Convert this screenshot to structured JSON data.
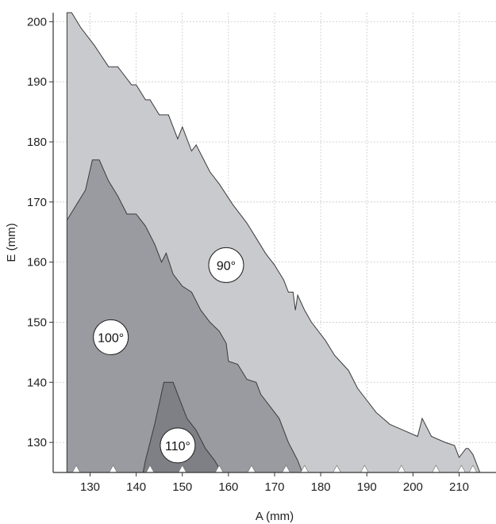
{
  "chart_data": {
    "type": "area",
    "xlabel": "A (mm)",
    "ylabel": "E (mm)",
    "xlim": [
      122,
      218
    ],
    "ylim": [
      125,
      201.5
    ],
    "xticks": [
      130,
      140,
      150,
      160,
      170,
      180,
      190,
      200,
      210
    ],
    "yticks": [
      130,
      140,
      150,
      160,
      170,
      180,
      190,
      200
    ],
    "grid": true,
    "regions": [
      {
        "label": "90°",
        "color": "#c9cacd",
        "label_at": [
          159.5,
          159.5
        ],
        "points": [
          [
            125,
            125
          ],
          [
            125,
            201.5
          ],
          [
            126,
            201.5
          ],
          [
            128,
            199
          ],
          [
            131,
            196
          ],
          [
            134,
            192.5
          ],
          [
            136,
            192.5
          ],
          [
            139,
            189.5
          ],
          [
            140,
            189.5
          ],
          [
            142,
            187
          ],
          [
            143,
            187
          ],
          [
            145,
            184.5
          ],
          [
            147,
            184.5
          ],
          [
            149,
            180.5
          ],
          [
            150,
            182.5
          ],
          [
            152,
            178.5
          ],
          [
            153,
            179.5
          ],
          [
            156,
            175
          ],
          [
            158,
            173
          ],
          [
            161,
            169.5
          ],
          [
            164,
            166.5
          ],
          [
            166,
            164
          ],
          [
            168,
            161.5
          ],
          [
            170,
            159.5
          ],
          [
            172,
            157
          ],
          [
            173,
            155
          ],
          [
            174,
            155
          ],
          [
            174.5,
            152
          ],
          [
            175,
            154.5
          ],
          [
            176.5,
            152
          ],
          [
            178,
            150
          ],
          [
            181,
            147
          ],
          [
            183,
            144.5
          ],
          [
            186,
            142
          ],
          [
            188,
            139
          ],
          [
            190,
            137
          ],
          [
            192,
            135
          ],
          [
            195,
            133
          ],
          [
            198,
            132
          ],
          [
            201,
            131
          ],
          [
            202,
            134
          ],
          [
            204,
            131
          ],
          [
            207,
            130
          ],
          [
            209,
            129.5
          ],
          [
            210,
            127.5
          ],
          [
            211.5,
            129
          ],
          [
            212,
            129
          ],
          [
            213,
            128
          ],
          [
            214.5,
            125
          ]
        ]
      },
      {
        "label": "100°",
        "color": "#999ba1",
        "label_at": [
          134.5,
          147.5
        ],
        "points": [
          [
            125,
            125
          ],
          [
            125,
            167
          ],
          [
            129,
            172
          ],
          [
            130.5,
            177
          ],
          [
            132,
            177
          ],
          [
            134,
            173.5
          ],
          [
            136,
            171
          ],
          [
            138,
            168
          ],
          [
            140,
            168
          ],
          [
            142,
            166
          ],
          [
            144,
            163
          ],
          [
            145.5,
            160
          ],
          [
            146.5,
            161.5
          ],
          [
            148,
            158
          ],
          [
            150,
            156
          ],
          [
            152,
            155
          ],
          [
            154,
            152
          ],
          [
            156,
            150
          ],
          [
            158,
            148.5
          ],
          [
            159.5,
            146.5
          ],
          [
            160,
            143.5
          ],
          [
            162,
            143
          ],
          [
            164,
            140.5
          ],
          [
            166,
            140
          ],
          [
            167,
            138
          ],
          [
            168,
            137
          ],
          [
            169,
            136
          ],
          [
            170,
            135
          ],
          [
            171,
            134
          ],
          [
            172,
            132
          ],
          [
            173,
            130
          ],
          [
            174,
            128.5
          ],
          [
            175,
            127
          ],
          [
            176,
            125
          ]
        ]
      },
      {
        "label": "110°",
        "color": "#7f8086",
        "label_at": [
          149,
          129.5
        ],
        "points": [
          [
            141.5,
            125
          ],
          [
            142,
            127
          ],
          [
            144,
            133
          ],
          [
            146,
            140
          ],
          [
            148,
            140
          ],
          [
            149,
            138
          ],
          [
            151,
            134
          ],
          [
            153,
            132
          ],
          [
            155,
            129
          ],
          [
            157,
            127
          ],
          [
            158.5,
            125
          ]
        ]
      }
    ]
  }
}
